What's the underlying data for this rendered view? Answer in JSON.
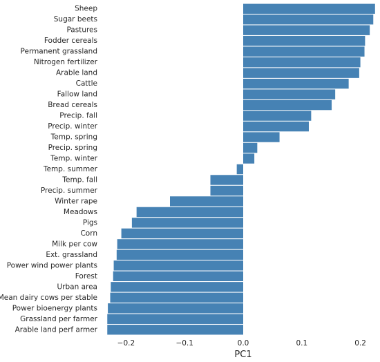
{
  "chart_data": {
    "type": "bar",
    "orientation": "horizontal",
    "xlabel": "PC1",
    "ylabel": "",
    "title": "",
    "grid": false,
    "bar_color": "#4682b4",
    "xlim": [
      -0.235,
      0.23
    ],
    "xticks": [
      -0.2,
      -0.1,
      0.0,
      0.1,
      0.2
    ],
    "xtick_labels": [
      "−0.2",
      "−0.1",
      "0.0",
      "0.1",
      "0.2"
    ],
    "categories": [
      "Sheep",
      "Sugar beets",
      "Pastures",
      "Fodder cereals",
      "Permanent grassland",
      "Nitrogen fertilizer",
      "Arable land",
      "Cattle",
      "Fallow land",
      "Bread cereals",
      "Precip. fall",
      "Precip. winter",
      "Temp. spring",
      "Precip. spring",
      "Temp. winter",
      "Temp. summer",
      "Temp. fall",
      "Precip. summer",
      "Winter rape",
      "Meadows",
      "Pigs",
      "Corn",
      "Milk per cow",
      "Ext. grassland",
      "Power wind power plants",
      "Forest",
      "Urban area",
      "Mean dairy cows per stable",
      "Power bioenergy plants",
      "Grassland per farmer",
      "Arable land perf armer"
    ],
    "values": [
      0.225,
      0.222,
      0.216,
      0.208,
      0.207,
      0.2,
      0.198,
      0.18,
      0.157,
      0.151,
      0.116,
      0.112,
      0.062,
      0.024,
      0.019,
      -0.011,
      -0.056,
      -0.056,
      -0.125,
      -0.182,
      -0.19,
      -0.208,
      -0.215,
      -0.216,
      -0.221,
      -0.222,
      -0.226,
      -0.227,
      -0.231,
      -0.232,
      -0.232
    ]
  }
}
